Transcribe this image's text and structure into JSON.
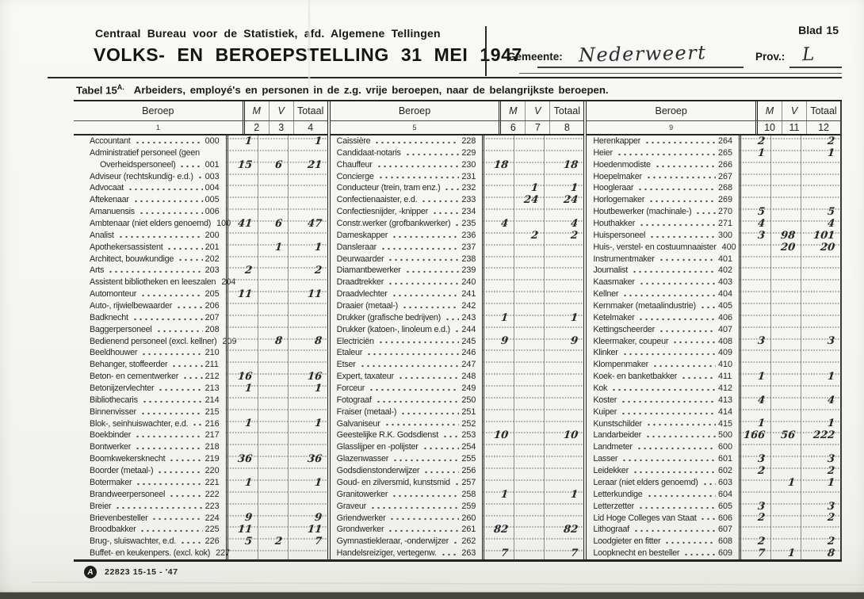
{
  "header": {
    "org": "Centraal Bureau voor de Statistiek, afd. Algemene Tellingen",
    "title": "VOLKS- EN BEROEPSTELLING 31 MEI 1947",
    "gemeente_label": "Gemeente:",
    "gemeente_value": "Nederweert",
    "prov_label": "Prov.:",
    "prov_value": "L",
    "blad_label": "Blad",
    "blad_value": "15"
  },
  "table": {
    "title_prefix": "Tabel 15",
    "title_sup": "A.",
    "title": "Arbeiders, employé's en personen in de z.g. vrije beroepen, naar de belangrijkste beroepen.",
    "col_headers": [
      "Beroep",
      "M",
      "V",
      "Totaal"
    ],
    "col_numbers": [
      [
        "1",
        "2",
        "3",
        "4"
      ],
      [
        "5",
        "6",
        "7",
        "8"
      ],
      [
        "9",
        "10",
        "11",
        "12"
      ]
    ],
    "groups": [
      {
        "rows": [
          {
            "name": "Accountant",
            "code": "000",
            "m": "1",
            "t": "1"
          },
          {
            "name": "Administratief personeel (geen",
            "name2": "Overheidspersoneel)",
            "code": "001",
            "m": "15",
            "v": "6",
            "t": "21"
          },
          {
            "name": "Adviseur (rechtskundig- e.d.)",
            "code": "003"
          },
          {
            "name": "Advocaat",
            "code": "004"
          },
          {
            "name": "Aftekenaar",
            "code": "005"
          },
          {
            "name": "Amanuensis",
            "code": "006"
          },
          {
            "name": "Ambtenaar (niet elders genoemd)",
            "code": "100",
            "m": "41",
            "v": "6",
            "t": "47"
          },
          {
            "name": "Analist",
            "code": "200"
          },
          {
            "name": "Apothekersassistent",
            "code": "201",
            "v": "1",
            "t": "1"
          },
          {
            "name": "Architect, bouwkundige",
            "code": "202"
          },
          {
            "name": "Arts",
            "code": "203",
            "m": "2",
            "t": "2"
          },
          {
            "name": "Assistent bibliotheken en leeszalen",
            "code": "204"
          },
          {
            "name": "Automonteur",
            "code": "205",
            "m": "11",
            "t": "11"
          },
          {
            "name": "Auto-, rijwielbewaarder",
            "code": "206"
          },
          {
            "name": "Badknecht",
            "code": "207"
          },
          {
            "name": "Baggerpersoneel",
            "code": "208"
          },
          {
            "name": "Bedienend personeel (excl. kellner)",
            "code": "209",
            "v": "8",
            "t": "8"
          },
          {
            "name": "Beeldhouwer",
            "code": "210"
          },
          {
            "name": "Behanger, stoffeerder",
            "code": "211"
          },
          {
            "name": "Beton- en cementwerker",
            "code": "212",
            "m": "16",
            "t": "16"
          },
          {
            "name": "Betonijzervlechter",
            "code": "213",
            "m": "1",
            "t": "1"
          },
          {
            "name": "Bibliothecaris",
            "code": "214"
          },
          {
            "name": "Binnenvisser",
            "code": "215"
          },
          {
            "name": "Blok-, seinhuiswachter, e.d.",
            "code": "216",
            "m": "1",
            "t": "1"
          },
          {
            "name": "Boekbinder",
            "code": "217"
          },
          {
            "name": "Bontwerker",
            "code": "218"
          },
          {
            "name": "Boomkwekersknecht",
            "code": "219",
            "m": "36",
            "t": "36"
          },
          {
            "name": "Boorder (metaal-)",
            "code": "220"
          },
          {
            "name": "Botermaker",
            "code": "221",
            "m": "1",
            "t": "1"
          },
          {
            "name": "Brandweerpersoneel",
            "code": "222"
          },
          {
            "name": "Breier",
            "code": "223"
          },
          {
            "name": "Brievenbesteller",
            "code": "224",
            "m": "9",
            "t": "9"
          },
          {
            "name": "Broodbakker",
            "code": "225",
            "m": "11",
            "t": "11"
          },
          {
            "name": "Brug-, sluiswachter, e.d.",
            "code": "226",
            "m": "5",
            "v": "2",
            "t": "7"
          },
          {
            "name": "Buffet- en keukenpers. (excl. kok)",
            "code": "227"
          }
        ]
      },
      {
        "rows": [
          {
            "name": "Caissière",
            "code": "228"
          },
          {
            "name": "Candidaat-notaris",
            "code": "229"
          },
          {
            "name": "Chauffeur",
            "code": "230",
            "m": "18",
            "t": "18"
          },
          {
            "name": "Concierge",
            "code": "231"
          },
          {
            "name": "Conducteur (trein, tram enz.)",
            "code": "232",
            "v": "1",
            "t": "1"
          },
          {
            "name": "Confectienaaister, e.d.",
            "code": "233",
            "v": "24",
            "t": "24"
          },
          {
            "name": "Confectiesnijder, -knipper",
            "code": "234"
          },
          {
            "name": "Constr.werker (grofbankwerker)",
            "code": "235",
            "m": "4",
            "t": "4"
          },
          {
            "name": "Dameskapper",
            "code": "236",
            "v": "2",
            "t": "2"
          },
          {
            "name": "Dansleraar",
            "code": "237"
          },
          {
            "name": "Deurwaarder",
            "code": "238"
          },
          {
            "name": "Diamantbewerker",
            "code": "239"
          },
          {
            "name": "Draadtrekker",
            "code": "240"
          },
          {
            "name": "Draadvlechter",
            "code": "241"
          },
          {
            "name": "Draaier (metaal-)",
            "code": "242"
          },
          {
            "name": "Drukker (grafische bedrijven)",
            "code": "243",
            "m": "1",
            "t": "1"
          },
          {
            "name": "Drukker (katoen-, linoleum e.d.)",
            "code": "244"
          },
          {
            "name": "Electriciën",
            "code": "245",
            "m": "9",
            "t": "9"
          },
          {
            "name": "Etaleur",
            "code": "246"
          },
          {
            "name": "Etser",
            "code": "247"
          },
          {
            "name": "Expert, taxateur",
            "code": "248"
          },
          {
            "name": "Forceur",
            "code": "249"
          },
          {
            "name": "Fotograaf",
            "code": "250"
          },
          {
            "name": "Fraiser (metaal-)",
            "code": "251"
          },
          {
            "name": "Galvaniseur",
            "code": "252"
          },
          {
            "name": "Geestelijke R.K. Godsdienst",
            "code": "253",
            "m": "10",
            "t": "10"
          },
          {
            "name": "Glasslijper en -polijster",
            "code": "254"
          },
          {
            "name": "Glazenwasser",
            "code": "255"
          },
          {
            "name": "Godsdienstonderwijzer",
            "code": "256"
          },
          {
            "name": "Goud- en zilversmid, kunstsmid",
            "code": "257"
          },
          {
            "name": "Granitowerker",
            "code": "258",
            "m": "1",
            "t": "1"
          },
          {
            "name": "Graveur",
            "code": "259"
          },
          {
            "name": "Griendwerker",
            "code": "260"
          },
          {
            "name": "Grondwerker",
            "code": "261",
            "m": "82",
            "t": "82"
          },
          {
            "name": "Gymnastiekleraar, -onderwijzer",
            "code": "262"
          },
          {
            "name": "Handelsreiziger, vertegenw.",
            "code": "263",
            "m": "7",
            "t": "7"
          }
        ]
      },
      {
        "rows": [
          {
            "name": "Herenkapper",
            "code": "264",
            "m": "2",
            "t": "2"
          },
          {
            "name": "Heier",
            "code": "265",
            "m": "1",
            "t": "1"
          },
          {
            "name": "Hoedenmodiste",
            "code": "266"
          },
          {
            "name": "Hoepelmaker",
            "code": "267"
          },
          {
            "name": "Hoogleraar",
            "code": "268"
          },
          {
            "name": "Horlogemaker",
            "code": "269"
          },
          {
            "name": "Houtbewerker (machinale-)",
            "code": "270",
            "m": "5",
            "t": "5"
          },
          {
            "name": "Houthakker",
            "code": "271",
            "m": "4",
            "t": "4"
          },
          {
            "name": "Huispersoneel",
            "code": "300",
            "m": "3",
            "v": "98",
            "t": "101"
          },
          {
            "name": "Huis-, verstel- en costuumnaaister",
            "code": "400",
            "v": "20",
            "t": "20"
          },
          {
            "name": "Instrumentmaker",
            "code": "401"
          },
          {
            "name": "Journalist",
            "code": "402"
          },
          {
            "name": "Kaasmaker",
            "code": "403"
          },
          {
            "name": "Kellner",
            "code": "404"
          },
          {
            "name": "Kernmaker (metaalindustrie)",
            "code": "405"
          },
          {
            "name": "Ketelmaker",
            "code": "406"
          },
          {
            "name": "Kettingscheerder",
            "code": "407"
          },
          {
            "name": "Kleermaker, coupeur",
            "code": "408",
            "m": "3",
            "t": "3"
          },
          {
            "name": "Klinker",
            "code": "409"
          },
          {
            "name": "Klompenmaker",
            "code": "410"
          },
          {
            "name": "Koek- en banketbakker",
            "code": "411",
            "m": "1",
            "t": "1"
          },
          {
            "name": "Kok",
            "code": "412"
          },
          {
            "name": "Koster",
            "code": "413",
            "m": "4",
            "t": "4"
          },
          {
            "name": "Kuiper",
            "code": "414"
          },
          {
            "name": "Kunstschilder",
            "code": "415",
            "m": "1",
            "t": "1"
          },
          {
            "name": "Landarbeider",
            "code": "500",
            "m": "166",
            "v": "56",
            "t": "222"
          },
          {
            "name": "Landmeter",
            "code": "600"
          },
          {
            "name": "Lasser",
            "code": "601",
            "m": "3",
            "t": "3"
          },
          {
            "name": "Leidekker",
            "code": "602",
            "m": "2",
            "t": "2"
          },
          {
            "name": "Leraar (niet elders genoemd)",
            "code": "603",
            "v": "1",
            "t": "1"
          },
          {
            "name": "Letterkundige",
            "code": "604"
          },
          {
            "name": "Letterzetter",
            "code": "605",
            "m": "3",
            "t": "3"
          },
          {
            "name": "Lid Hoge Colleges van Staat",
            "code": "606",
            "m": "2",
            "t": "2"
          },
          {
            "name": "Lithograaf",
            "code": "607"
          },
          {
            "name": "Loodgieter en fitter",
            "code": "608",
            "m": "2",
            "t": "2"
          },
          {
            "name": "Loopknecht en besteller",
            "code": "609",
            "m": "7",
            "v": "1",
            "t": "8"
          }
        ]
      }
    ]
  },
  "footer": {
    "logo_letter": "A",
    "print_code": "22823 15-15 - '47"
  }
}
